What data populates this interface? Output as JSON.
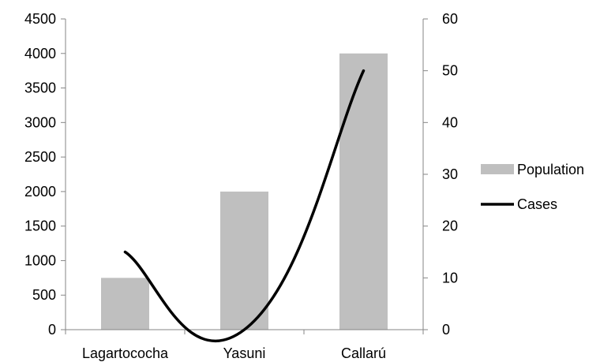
{
  "chart_data": {
    "type": "bar",
    "title": "",
    "xlabel": "",
    "ylabel": "",
    "categories": [
      "Lagartococha",
      "Yasuni",
      "Callarú"
    ],
    "series": [
      {
        "name": "Population",
        "type": "bar",
        "axis": "left",
        "color": "#bfbfbf",
        "values": [
          750,
          2000,
          4000
        ]
      },
      {
        "name": "Cases",
        "type": "line",
        "axis": "right",
        "color": "#000000",
        "smooth": true,
        "values": [
          15,
          0,
          50
        ]
      }
    ],
    "ylim_left": [
      0,
      4500
    ],
    "yticks_left": [
      "0",
      "500",
      "1000",
      "1500",
      "2000",
      "2500",
      "3000",
      "3500",
      "4000",
      "4500"
    ],
    "ylim_right": [
      0,
      60
    ],
    "yticks_right": [
      "0",
      "10",
      "20",
      "30",
      "40",
      "50",
      "60"
    ],
    "grid": false,
    "legend_position": "right"
  }
}
